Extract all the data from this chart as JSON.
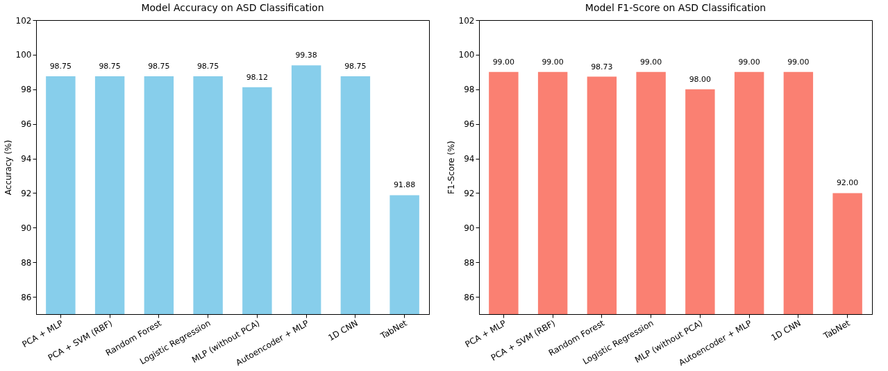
{
  "chart_data": [
    {
      "type": "bar",
      "title": "Model Accuracy on ASD Classification",
      "ylabel": "Accuracy (%)",
      "categories": [
        "PCA + MLP",
        "PCA + SVM (RBF)",
        "Random Forest",
        "Logistic Regression",
        "MLP (without PCA)",
        "Autoencoder + MLP",
        "1D CNN",
        "TabNet"
      ],
      "values": [
        98.75,
        98.75,
        98.75,
        98.75,
        98.12,
        99.38,
        98.75,
        91.88
      ],
      "value_labels": [
        "98.75",
        "98.75",
        "98.75",
        "98.75",
        "98.12",
        "99.38",
        "98.75",
        "91.88"
      ],
      "color": "#87ceeb",
      "ylim": [
        85,
        102
      ],
      "yticks": [
        86,
        88,
        90,
        92,
        94,
        96,
        98,
        100,
        102
      ]
    },
    {
      "type": "bar",
      "title": "Model F1-Score on ASD Classification",
      "ylabel": "F1-Score (%)",
      "categories": [
        "PCA + MLP",
        "PCA + SVM (RBF)",
        "Random Forest",
        "Logistic Regression",
        "MLP (without PCA)",
        "Autoencoder + MLP",
        "1D CNN",
        "TabNet"
      ],
      "values": [
        99.0,
        99.0,
        98.73,
        99.0,
        98.0,
        99.0,
        99.0,
        92.0
      ],
      "value_labels": [
        "99.00",
        "99.00",
        "98.73",
        "99.00",
        "98.00",
        "99.00",
        "99.00",
        "92.00"
      ],
      "color": "#fa8072",
      "ylim": [
        85,
        102
      ],
      "yticks": [
        86,
        88,
        90,
        92,
        94,
        96,
        98,
        100,
        102
      ]
    }
  ]
}
